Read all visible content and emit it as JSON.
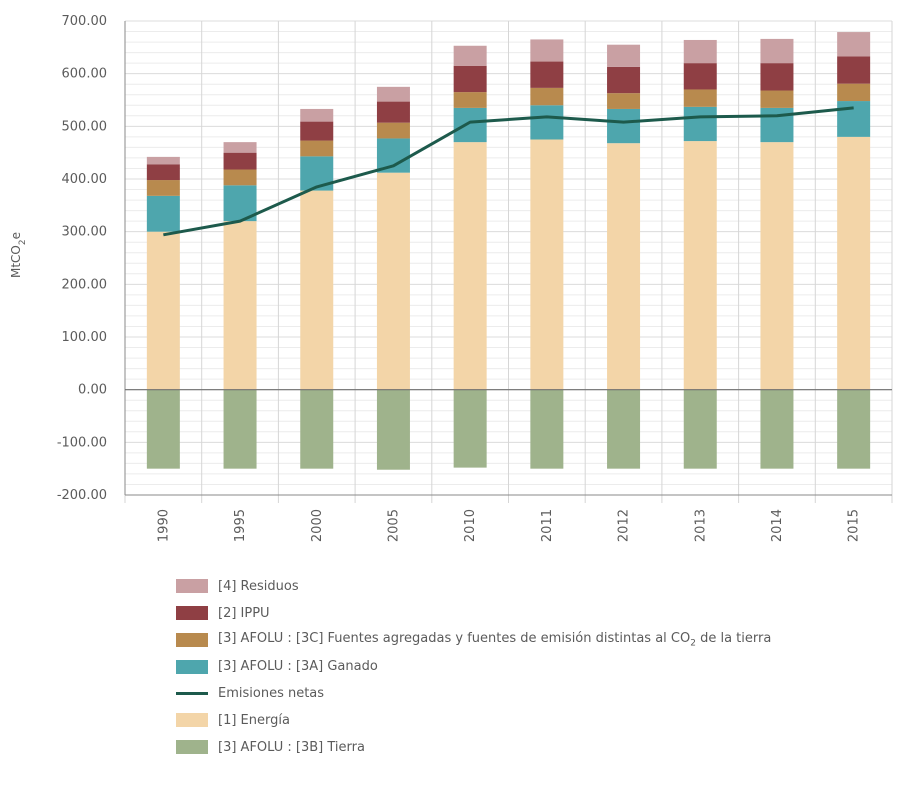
{
  "chart_data": {
    "type": "bar",
    "stacked": true,
    "title": "",
    "xlabel": "",
    "ylabel": "MtCO2e",
    "ylim": [
      -200,
      700
    ],
    "yticks": [
      700,
      600,
      500,
      400,
      300,
      200,
      100,
      0,
      -100,
      -200
    ],
    "ytick_labels": [
      "700.00",
      "600.00",
      "500.00",
      "400.00",
      "300.00",
      "200.00",
      "100.00",
      "0.00",
      "-100.00",
      "-200.00"
    ],
    "grid": true,
    "legend_position": "bottom",
    "categories": [
      "1990",
      "1995",
      "2000",
      "2005",
      "2010",
      "2011",
      "2012",
      "2013",
      "2014",
      "2015"
    ],
    "series": [
      {
        "name": "[1] Energía",
        "color": "#f3d5a8",
        "values": [
          300,
          320,
          378,
          412,
          470,
          475,
          468,
          472,
          470,
          480
        ]
      },
      {
        "name": "[3] AFOLU : [3A] Ganado",
        "color": "#4ea6ad",
        "values": [
          68,
          68,
          65,
          65,
          65,
          65,
          65,
          65,
          65,
          68
        ]
      },
      {
        "name": "[3] AFOLU : [3C] Fuentes agregadas y fuentes de emisión distintas al CO2 de la tierra",
        "color": "#b88a4e",
        "values": [
          30,
          30,
          30,
          30,
          30,
          33,
          30,
          33,
          33,
          33
        ]
      },
      {
        "name": "[2] IPPU",
        "color": "#8f3f44",
        "values": [
          30,
          32,
          36,
          40,
          50,
          50,
          50,
          50,
          52,
          52
        ]
      },
      {
        "name": "[4] Residuos",
        "color": "#c9a0a3",
        "values": [
          14,
          20,
          24,
          28,
          38,
          42,
          42,
          44,
          46,
          46
        ]
      },
      {
        "name": "[3] AFOLU : [3B] Tierra",
        "color": "#9fb38c",
        "values": [
          -150,
          -150,
          -150,
          -152,
          -148,
          -150,
          -150,
          -150,
          -150,
          -150
        ]
      }
    ],
    "line_series": {
      "name": "Emisiones netas",
      "color": "#1d5a4c",
      "values": [
        294,
        320,
        385,
        425,
        508,
        518,
        508,
        518,
        520,
        535
      ]
    },
    "legend_order": [
      "[4] Residuos",
      "[2] IPPU",
      "[3] AFOLU : [3C] Fuentes agregadas y fuentes de emisión distintas al CO2 de la tierra",
      "[3] AFOLU : [3A] Ganado",
      "Emisiones netas",
      "[1] Energía",
      "[3] AFOLU : [3B] Tierra"
    ]
  },
  "legend": {
    "residuos": "[4] Residuos",
    "ippu": "[2] IPPU",
    "afolu_3c_prefix": "[3] AFOLU : [3C] Fuentes agregadas y fuentes de emisión distintas al CO",
    "afolu_3c_sub": "2",
    "afolu_3c_suffix": " de la tierra",
    "ganado": "[3] AFOLU : [3A] Ganado",
    "emisiones": "Emisiones netas",
    "energia": "[1] Energía",
    "tierra": "[3] AFOLU : [3B] Tierra"
  }
}
